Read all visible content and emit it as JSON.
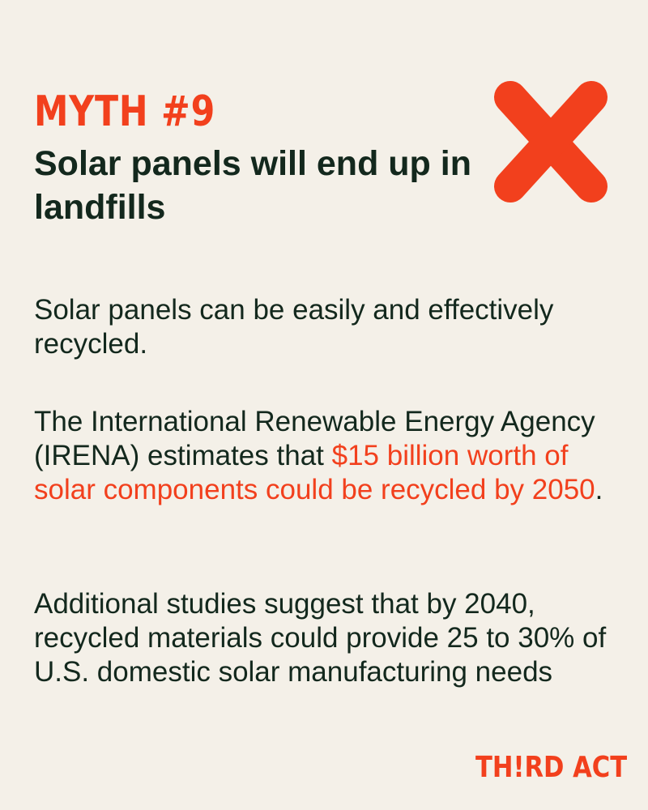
{
  "header": {
    "myth_label": "MYTH #9",
    "title": "Solar panels will end up in landfills"
  },
  "icons": {
    "x_mark": "x-mark-icon",
    "x_color": "#f2401d"
  },
  "body": {
    "paragraph_1": "Solar panels can be easily and effectively recycled.",
    "paragraph_2_start": "The International Renewable Energy Agency (IRENA) estimates that ",
    "paragraph_2_highlight": "$15 billion worth of solar components could be recycled by 2050",
    "paragraph_2_end": ".",
    "paragraph_3": "Additional studies suggest that by 2040, recycled materials could provide 25 to 30% of U.S. domestic solar manufacturing needs"
  },
  "brand": {
    "logo_text": "TH!RD ACT"
  },
  "colors": {
    "background": "#f4f0e8",
    "accent": "#f2401d",
    "text": "#13281d"
  }
}
